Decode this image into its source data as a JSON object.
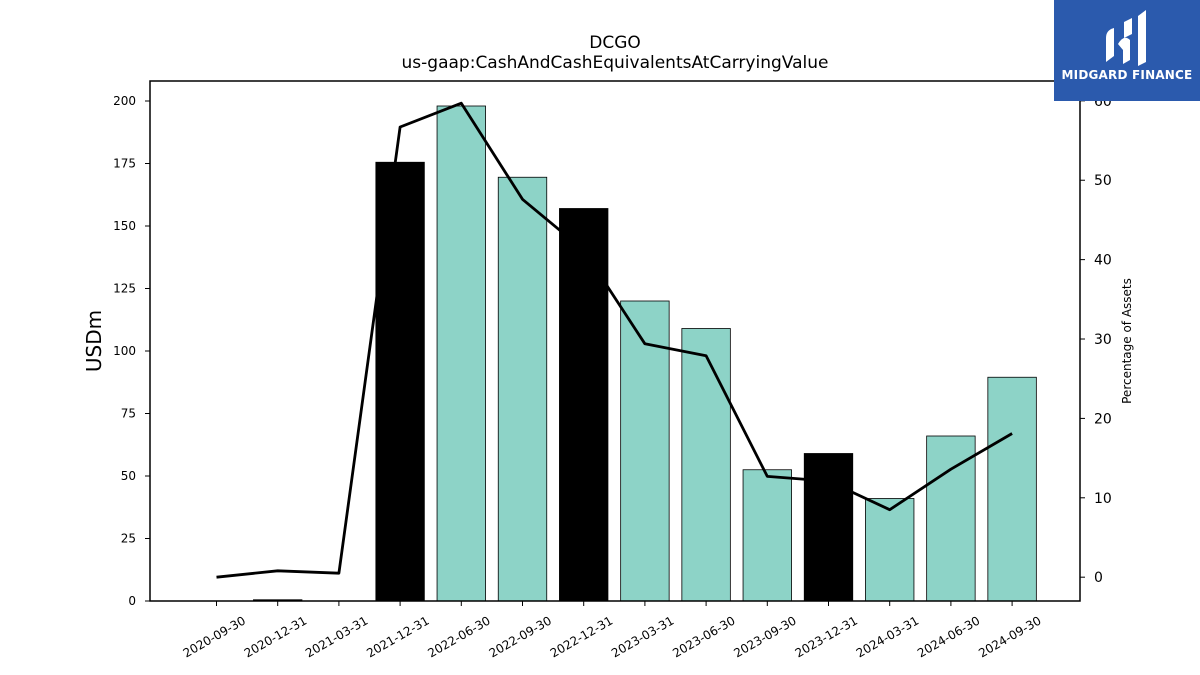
{
  "logo": {
    "text": "MIDGARD FINANCE",
    "icon": "midgard-logo-icon",
    "background": "#2b5aad"
  },
  "chart_data": {
    "type": "bar",
    "title": "DCGO",
    "subtitle": "us-gaap:CashAndCashEquivalentsAtCarryingValue",
    "ylabel": "USDm",
    "ylabel_right": "Percentage of Assets",
    "ylim": [
      0,
      208
    ],
    "ylim_right": [
      -3,
      62.5
    ],
    "yticks": [
      0,
      25,
      50,
      75,
      100,
      125,
      150,
      175,
      200
    ],
    "yticks_right": [
      0,
      10,
      20,
      30,
      40,
      50,
      60
    ],
    "grid": false,
    "categories": [
      "2020-09-30",
      "2020-12-31",
      "2021-03-31",
      "2021-12-31",
      "2022-06-30",
      "2022-09-30",
      "2022-12-31",
      "2023-03-31",
      "2023-06-30",
      "2023-09-30",
      "2023-12-31",
      "2024-03-31",
      "2024-06-30",
      "2024-09-30"
    ],
    "series": [
      {
        "kind": "bar",
        "axis": "left",
        "values": [
          0,
          0.5,
          0,
          175.5,
          198,
          169.5,
          157,
          120,
          109,
          52.5,
          59,
          41,
          66,
          89.5
        ],
        "colors": [
          "#8dd3c7",
          "#000000",
          "#8dd3c7",
          "#000000",
          "#8dd3c7",
          "#8dd3c7",
          "#000000",
          "#8dd3c7",
          "#8dd3c7",
          "#8dd3c7",
          "#000000",
          "#8dd3c7",
          "#8dd3c7",
          "#8dd3c7"
        ]
      },
      {
        "kind": "line",
        "axis": "right",
        "color": "#000000",
        "values": [
          0,
          0.8,
          0.5,
          56.7,
          59.7,
          47.6,
          41.2,
          29.4,
          27.9,
          12.7,
          12.1,
          8.5,
          13.6,
          18.1
        ]
      }
    ]
  }
}
